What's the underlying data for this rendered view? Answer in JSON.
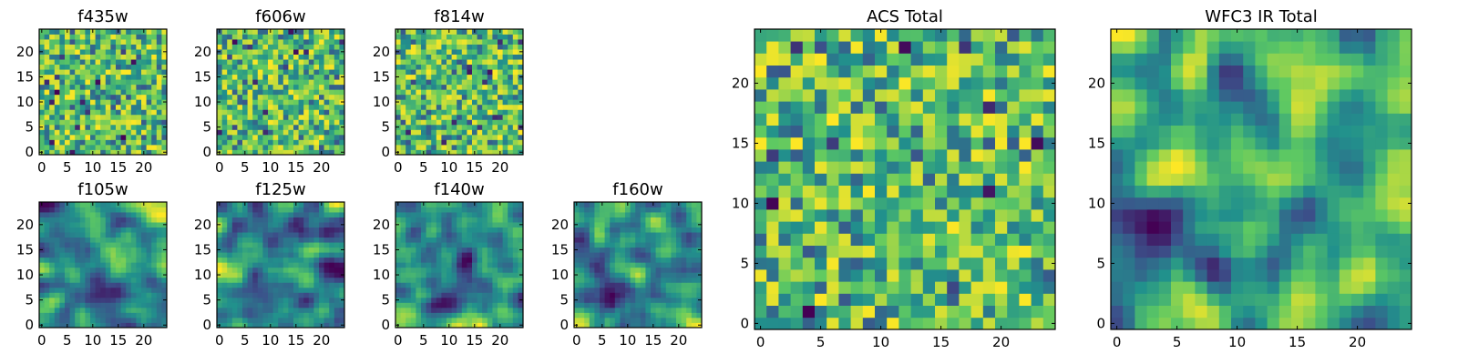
{
  "chart_data": [
    {
      "type": "heatmap",
      "title": "f435w",
      "xticks": [
        0,
        5,
        10,
        15,
        20
      ],
      "yticks": [
        0,
        5,
        10,
        15,
        20
      ],
      "xlim": [
        0,
        24
      ],
      "ylim": [
        0,
        24
      ],
      "colormap": "viridis",
      "pattern": "noise"
    },
    {
      "type": "heatmap",
      "title": "f606w",
      "xticks": [
        0,
        5,
        10,
        15,
        20
      ],
      "yticks": [
        0,
        5,
        10,
        15,
        20
      ],
      "xlim": [
        0,
        24
      ],
      "ylim": [
        0,
        24
      ],
      "colormap": "viridis",
      "pattern": "noise"
    },
    {
      "type": "heatmap",
      "title": "f814w",
      "xticks": [
        0,
        5,
        10,
        15,
        20
      ],
      "yticks": [
        0,
        5,
        10,
        15,
        20
      ],
      "xlim": [
        0,
        24
      ],
      "ylim": [
        0,
        24
      ],
      "colormap": "viridis",
      "pattern": "noise"
    },
    {
      "type": "heatmap",
      "title": "f105w",
      "xticks": [
        0,
        5,
        10,
        15,
        20
      ],
      "yticks": [
        0,
        5,
        10,
        15,
        20
      ],
      "xlim": [
        0,
        24
      ],
      "ylim": [
        0,
        24
      ],
      "colormap": "viridis",
      "pattern": "smooth"
    },
    {
      "type": "heatmap",
      "title": "f125w",
      "xticks": [
        0,
        5,
        10,
        15,
        20
      ],
      "yticks": [
        0,
        5,
        10,
        15,
        20
      ],
      "xlim": [
        0,
        24
      ],
      "ylim": [
        0,
        24
      ],
      "colormap": "viridis",
      "pattern": "smooth"
    },
    {
      "type": "heatmap",
      "title": "f140w",
      "xticks": [
        0,
        5,
        10,
        15,
        20
      ],
      "yticks": [
        0,
        5,
        10,
        15,
        20
      ],
      "xlim": [
        0,
        24
      ],
      "ylim": [
        0,
        24
      ],
      "colormap": "viridis",
      "pattern": "smooth"
    },
    {
      "type": "heatmap",
      "title": "f160w",
      "xticks": [
        0,
        5,
        10,
        15,
        20
      ],
      "yticks": [
        0,
        5,
        10,
        15,
        20
      ],
      "xlim": [
        0,
        24
      ],
      "ylim": [
        0,
        24
      ],
      "colormap": "viridis",
      "pattern": "smooth"
    },
    {
      "type": "heatmap",
      "title": "ACS Total",
      "xticks": [
        0,
        5,
        10,
        15,
        20
      ],
      "yticks": [
        0,
        5,
        10,
        15,
        20
      ],
      "xlim": [
        0,
        24
      ],
      "ylim": [
        0,
        24
      ],
      "colormap": "viridis",
      "pattern": "noise"
    },
    {
      "type": "heatmap",
      "title": "WFC3 IR Total",
      "xticks": [
        0,
        5,
        10,
        15,
        20
      ],
      "yticks": [
        0,
        5,
        10,
        15,
        20
      ],
      "xlim": [
        0,
        24
      ],
      "ylim": [
        0,
        24
      ],
      "colormap": "viridis",
      "pattern": "smooth"
    }
  ],
  "colors": {
    "viridis_stops": [
      "#440154",
      "#3b528b",
      "#21918c",
      "#5ec962",
      "#fde725"
    ]
  }
}
